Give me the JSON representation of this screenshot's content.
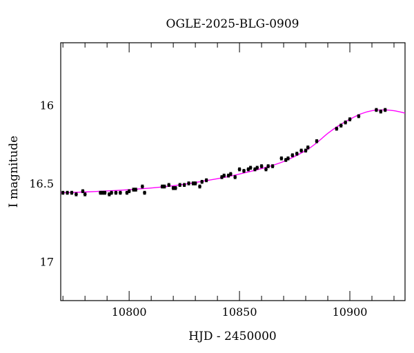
{
  "chart_data": {
    "type": "scatter",
    "title": "OGLE-2025-BLG-0909",
    "xlabel": "HJD - 2450000",
    "ylabel": "I magnitude",
    "xlim": [
      10769,
      10925
    ],
    "ylim": [
      17.25,
      15.6
    ],
    "y_inverted": true,
    "grid": false,
    "x_ticks": [
      10800,
      10850,
      10900
    ],
    "y_ticks": [
      16,
      16.5,
      17
    ],
    "x_tick_labels": [
      "10800",
      "10850",
      "10900"
    ],
    "y_tick_labels": [
      "16",
      "16.5",
      "17"
    ],
    "colors": {
      "points": "#000000",
      "model": "#ff00ff",
      "frame": "#000000"
    },
    "series": [
      {
        "kind": "points",
        "x": [
          10770,
          10772,
          10774,
          10776,
          10779,
          10780,
          10787,
          10788,
          10789,
          10791,
          10792,
          10794,
          10796,
          10799,
          10800,
          10802,
          10803,
          10806,
          10807,
          10815,
          10816,
          10818,
          10820,
          10821,
          10823,
          10825,
          10827,
          10829,
          10830,
          10832,
          10833,
          10835,
          10842,
          10843,
          10845,
          10846,
          10848,
          10850,
          10852,
          10854,
          10855,
          10857,
          10858,
          10860,
          10862,
          10863,
          10865,
          10869,
          10871,
          10872,
          10874,
          10876,
          10878,
          10880,
          10881,
          10885,
          10894,
          10896,
          10898,
          10900,
          10904,
          10912,
          10914,
          10916
        ],
        "y": [
          16.56,
          16.56,
          16.56,
          16.57,
          16.55,
          16.57,
          16.56,
          16.56,
          16.56,
          16.57,
          16.56,
          16.56,
          16.56,
          16.56,
          16.55,
          16.54,
          16.54,
          16.52,
          16.56,
          16.52,
          16.52,
          16.51,
          16.53,
          16.53,
          16.51,
          16.51,
          16.5,
          16.5,
          16.5,
          16.52,
          16.49,
          16.48,
          16.46,
          16.45,
          16.45,
          16.44,
          16.46,
          16.41,
          16.42,
          16.41,
          16.4,
          16.41,
          16.4,
          16.39,
          16.41,
          16.39,
          16.39,
          16.34,
          16.35,
          16.34,
          16.32,
          16.31,
          16.29,
          16.29,
          16.27,
          16.23,
          16.15,
          16.13,
          16.11,
          16.09,
          16.07,
          16.03,
          16.04,
          16.03
        ],
        "y_err": 0.01
      },
      {
        "kind": "model",
        "x": [
          10769,
          10780,
          10800,
          10820,
          10840,
          10850,
          10860,
          10870,
          10880,
          10885,
          10890,
          10895,
          10900,
          10905,
          10910,
          10915,
          10920,
          10925
        ],
        "y": [
          16.56,
          16.555,
          16.54,
          16.515,
          16.47,
          16.44,
          16.405,
          16.36,
          16.29,
          16.24,
          16.18,
          16.13,
          16.09,
          16.055,
          16.035,
          16.03,
          16.035,
          16.05
        ]
      }
    ]
  }
}
